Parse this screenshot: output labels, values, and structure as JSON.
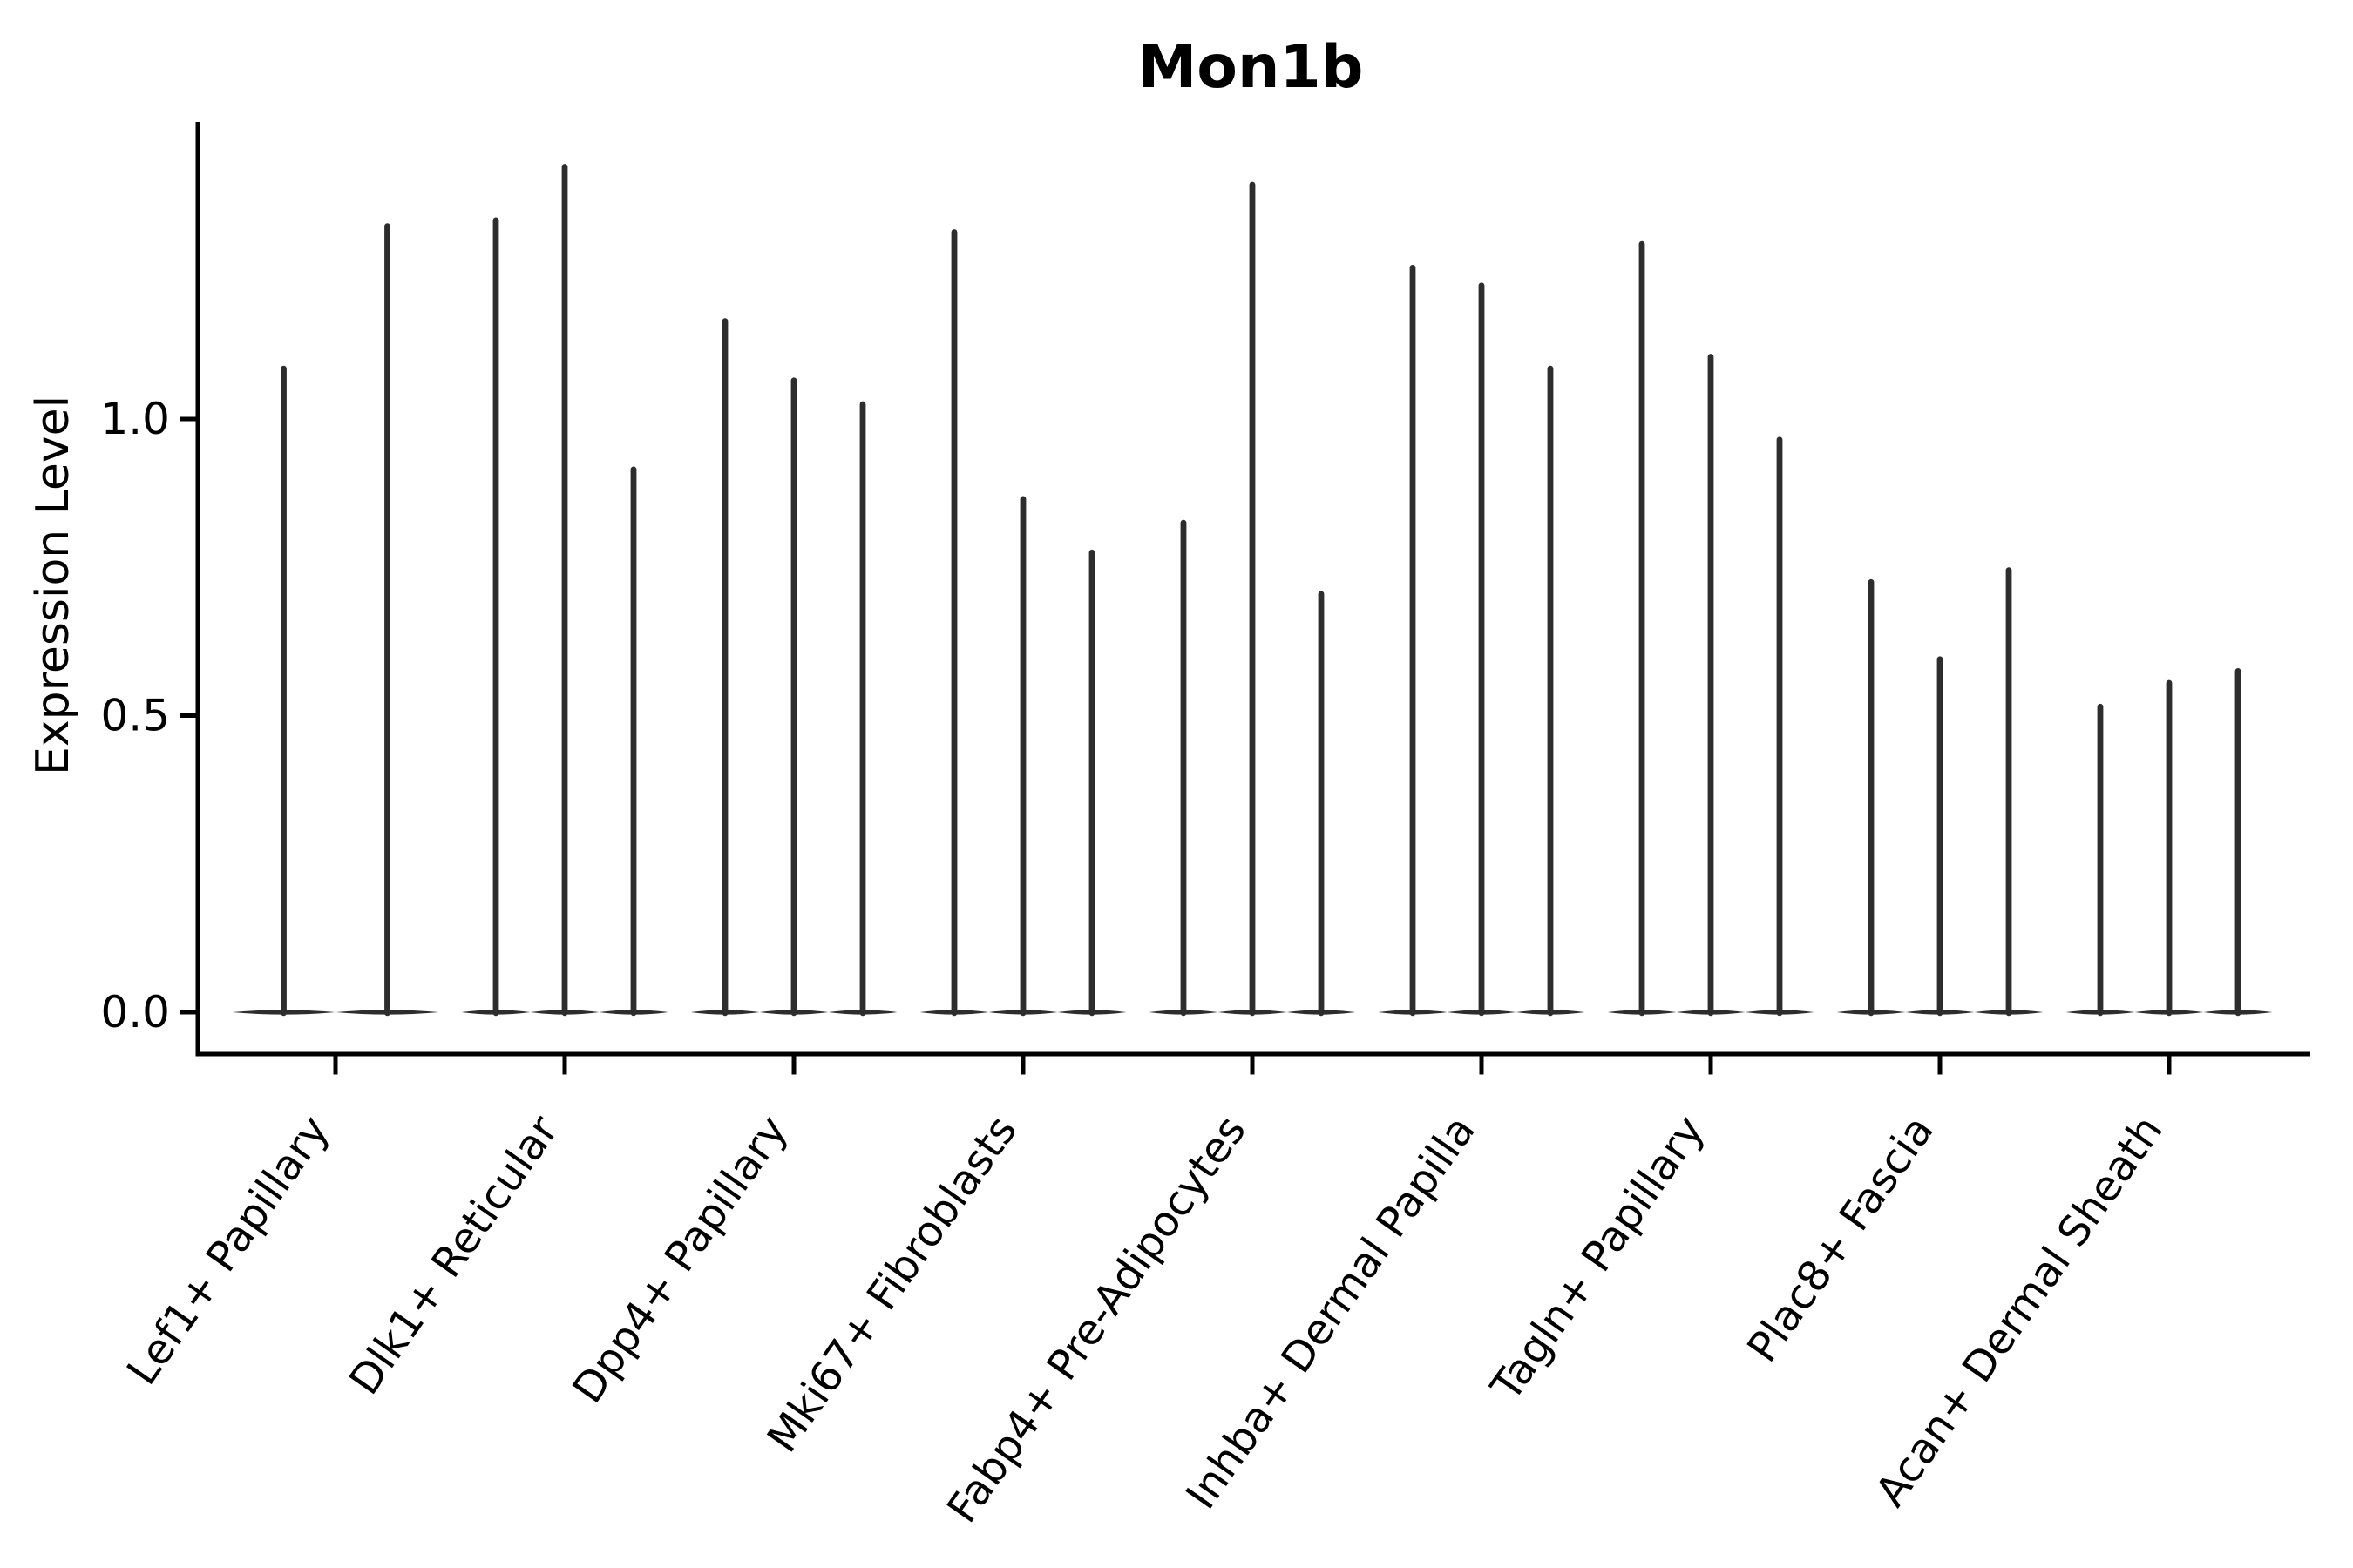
{
  "title": "Mon1b",
  "chart_data": {
    "type": "violin",
    "title": "Mon1b",
    "xlabel": "",
    "ylabel": "Expression Level",
    "yticks": [
      "0.0",
      "0.5",
      "1.0"
    ],
    "ytick_values": [
      0.0,
      0.5,
      1.0
    ],
    "ylim": [
      -0.07,
      1.5
    ],
    "grid": false,
    "legend": false,
    "spines": [
      "left",
      "bottom"
    ],
    "x_label_rotation_deg": 55,
    "violin_style": "thin spike violins: nearly all density at 0 with a narrow spike up to the max expression value",
    "categories": [
      "Lef1+ Papillary",
      "Dlk1+ Reticular",
      "Dpp4+ Papillary",
      "Mki67+ Fibroblasts",
      "Fabp4+ Pre-Adipocytes",
      "Inhba+ Dermal Papilla",
      "Tagln+ Papillary",
      "Plac8+ Fascia",
      "Acan+ Dermal Sheath"
    ],
    "series": [
      {
        "category": "Lef1+ Papillary",
        "violin_peaks": [
          1.09,
          1.33
        ]
      },
      {
        "category": "Dlk1+ Reticular",
        "violin_peaks": [
          1.34,
          1.43,
          0.92
        ]
      },
      {
        "category": "Dpp4+ Papillary",
        "violin_peaks": [
          1.17,
          1.07,
          1.03
        ]
      },
      {
        "category": "Mki67+ Fibroblasts",
        "violin_peaks": [
          1.32,
          0.87,
          0.78
        ]
      },
      {
        "category": "Fabp4+ Pre-Adipocytes",
        "violin_peaks": [
          0.83,
          1.4,
          0.71
        ]
      },
      {
        "category": "Inhba+ Dermal Papilla",
        "violin_peaks": [
          1.26,
          1.23,
          1.09
        ]
      },
      {
        "category": "Tagln+ Papillary",
        "violin_peaks": [
          1.3,
          1.11,
          0.97
        ]
      },
      {
        "category": "Plac8+ Fascia",
        "violin_peaks": [
          0.73,
          0.6,
          0.75
        ]
      },
      {
        "category": "Acan+ Dermal Sheath",
        "violin_peaks": [
          0.52,
          0.56,
          0.58
        ]
      }
    ],
    "colors": {
      "violin": "#2d2d2d",
      "axis": "#000000",
      "text": "#000000",
      "background": "#ffffff"
    }
  }
}
